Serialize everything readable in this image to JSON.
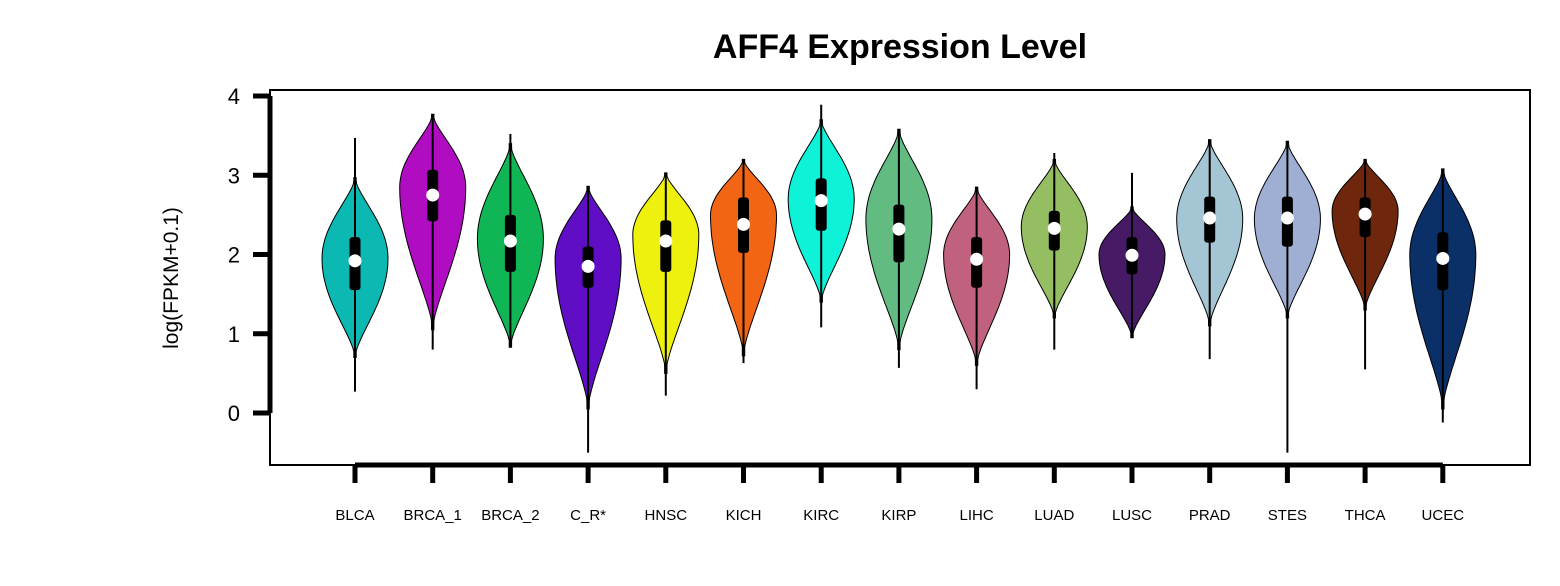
{
  "chart_data": {
    "type": "violin",
    "title": "AFF4 Expression Level",
    "ylabel": "log(FPKM+0.1)",
    "xlabel": "",
    "ylim": [
      -0.67,
      4.07
    ],
    "yticks": [
      "0",
      "1",
      "2",
      "3",
      "4"
    ],
    "grid": false,
    "legend": "none",
    "categories": [
      "BLCA",
      "BRCA_1",
      "BRCA_2",
      "C_R*",
      "HNSC",
      "KICH",
      "KIRC",
      "KIRP",
      "LIHC",
      "LUAD",
      "LUSC",
      "PRAD",
      "STES",
      "THCA",
      "UCEC"
    ],
    "series": [
      {
        "category": "BLCA",
        "color": "#0BB8B2",
        "min": 0.27,
        "max": 3.47,
        "q1": 1.55,
        "median": 1.92,
        "q3": 2.22,
        "violin_min": 0.7,
        "violin_max": 2.97,
        "mode": 1.95
      },
      {
        "category": "BRCA_1",
        "color": "#B00DC2",
        "min": 0.8,
        "max": 3.77,
        "q1": 2.42,
        "median": 2.75,
        "q3": 3.07,
        "violin_min": 1.05,
        "violin_max": 3.77,
        "mode": 2.85
      },
      {
        "category": "BRCA_2",
        "color": "#10B555",
        "min": 0.83,
        "max": 3.52,
        "q1": 1.78,
        "median": 2.17,
        "q3": 2.5,
        "violin_min": 0.83,
        "violin_max": 3.4,
        "mode": 2.2
      },
      {
        "category": "C_R*",
        "color": "#5F0EC5",
        "min": -0.5,
        "max": 2.86,
        "q1": 1.58,
        "median": 1.85,
        "q3": 2.1,
        "violin_min": 0.05,
        "violin_max": 2.86,
        "mode": 1.95
      },
      {
        "category": "HNSC",
        "color": "#EEF00E",
        "min": 0.22,
        "max": 3.03,
        "q1": 1.78,
        "median": 2.17,
        "q3": 2.43,
        "violin_min": 0.5,
        "violin_max": 3.03,
        "mode": 2.25
      },
      {
        "category": "KICH",
        "color": "#F26514",
        "min": 0.63,
        "max": 3.2,
        "q1": 2.02,
        "median": 2.38,
        "q3": 2.72,
        "violin_min": 0.72,
        "violin_max": 3.2,
        "mode": 2.5
      },
      {
        "category": "KIRC",
        "color": "#0EF2D8",
        "min": 1.08,
        "max": 3.89,
        "q1": 2.3,
        "median": 2.68,
        "q3": 2.96,
        "violin_min": 1.4,
        "violin_max": 3.7,
        "mode": 2.7
      },
      {
        "category": "KIRP",
        "color": "#62BC82",
        "min": 0.57,
        "max": 3.58,
        "q1": 1.9,
        "median": 2.32,
        "q3": 2.63,
        "violin_min": 0.8,
        "violin_max": 3.58,
        "mode": 2.45
      },
      {
        "category": "LIHC",
        "color": "#C0617E",
        "min": 0.3,
        "max": 2.85,
        "q1": 1.58,
        "median": 1.94,
        "q3": 2.22,
        "violin_min": 0.6,
        "violin_max": 2.85,
        "mode": 2.0
      },
      {
        "category": "LUAD",
        "color": "#95BE63",
        "min": 0.8,
        "max": 3.28,
        "q1": 2.05,
        "median": 2.33,
        "q3": 2.55,
        "violin_min": 1.2,
        "violin_max": 3.2,
        "mode": 2.35
      },
      {
        "category": "LUSC",
        "color": "#461A65",
        "min": 0.95,
        "max": 3.03,
        "q1": 1.75,
        "median": 1.99,
        "q3": 2.22,
        "violin_min": 0.95,
        "violin_max": 2.6,
        "mode": 2.0
      },
      {
        "category": "PRAD",
        "color": "#A3C5D4",
        "min": 0.68,
        "max": 3.45,
        "q1": 2.15,
        "median": 2.46,
        "q3": 2.73,
        "violin_min": 1.1,
        "violin_max": 3.45,
        "mode": 2.45
      },
      {
        "category": "STES",
        "color": "#9FAFD4",
        "min": -0.5,
        "max": 3.43,
        "q1": 2.1,
        "median": 2.46,
        "q3": 2.73,
        "violin_min": 1.2,
        "violin_max": 3.43,
        "mode": 2.45
      },
      {
        "category": "THCA",
        "color": "#6E270C",
        "min": 0.55,
        "max": 3.2,
        "q1": 2.22,
        "median": 2.51,
        "q3": 2.72,
        "violin_min": 1.3,
        "violin_max": 3.2,
        "mode": 2.55
      },
      {
        "category": "UCEC",
        "color": "#0B3068",
        "min": -0.12,
        "max": 3.08,
        "q1": 1.55,
        "median": 1.95,
        "q3": 2.28,
        "violin_min": 0.05,
        "violin_max": 3.08,
        "mode": 2.0
      }
    ]
  }
}
